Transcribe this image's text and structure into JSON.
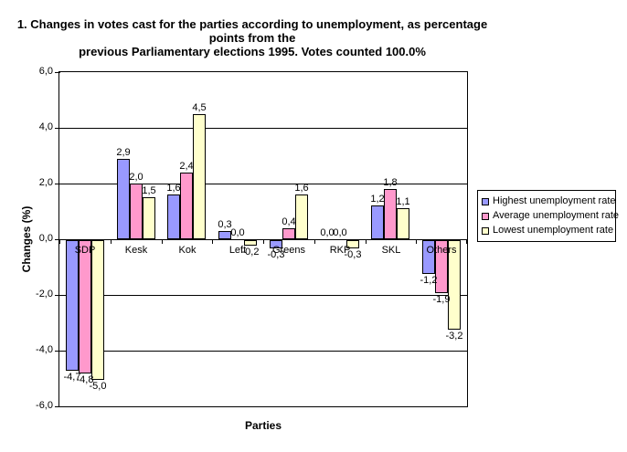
{
  "title": {
    "line1": "1. Changes in votes cast for the parties according to unemployment, as percentage points from the",
    "line2": "previous Parliamentary elections 1995.  Votes counted 100.0%"
  },
  "chart_data": {
    "type": "bar",
    "title": "1. Changes in votes cast for the parties according to unemployment, as percentage points from the previous Parliamentary elections 1995. Votes counted 100.0%",
    "xlabel": "Parties",
    "ylabel": "Changes (%)",
    "ylim": [
      -6,
      6
    ],
    "ytick_step": 2,
    "ytick_labels": [
      "6,0",
      "4,0",
      "2,0",
      "0,0",
      "-2,0",
      "-4,0",
      "-6,0"
    ],
    "grid": true,
    "legend_position": "right",
    "decimal_separator": ",",
    "categories": [
      "SDP",
      "Kesk",
      "Kok",
      "Left",
      "Greens",
      "RKP",
      "SKL",
      "Others"
    ],
    "series": [
      {
        "name": "Highest unemployment rate",
        "color": "#9999FF",
        "values": [
          -4.7,
          2.9,
          1.6,
          0.3,
          -0.3,
          0.0,
          1.2,
          -1.2
        ],
        "labels": [
          "-4,7",
          "2,9",
          "1,6",
          "0,3",
          "-0,3",
          "0,0",
          "1,2",
          "-1,2"
        ]
      },
      {
        "name": "Average unemployment rate",
        "color": "#FF99CC",
        "values": [
          -4.8,
          2.0,
          2.4,
          0.0,
          0.4,
          0.0,
          1.8,
          -1.9
        ],
        "labels": [
          "-4,8",
          "2,0",
          "2,4",
          "0,0",
          "0,4",
          "0,0",
          "1,8",
          "-1,9"
        ]
      },
      {
        "name": "Lowest unemployment rate",
        "color": "#FFFFCC",
        "values": [
          -5.0,
          1.5,
          4.5,
          -0.2,
          1.6,
          -0.3,
          1.1,
          -3.2
        ],
        "labels": [
          "-5,0",
          "1,5",
          "4,5",
          "-0,2",
          "1,6",
          "-0,3",
          "1,1",
          "-3,2"
        ]
      }
    ]
  }
}
